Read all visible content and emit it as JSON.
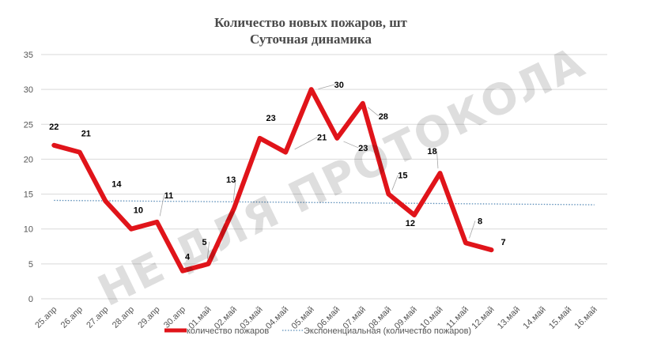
{
  "chart_data": {
    "type": "line",
    "title": "Количество новых пожаров, шт",
    "subtitle": "Суточная динамика",
    "xlabel": "",
    "ylabel": "",
    "categories": [
      "25.апр",
      "26.апр",
      "27.апр",
      "28.апр",
      "29.апр",
      "30.апр",
      "01.май",
      "02.май",
      "03.май",
      "04.май",
      "05.май",
      "06.май",
      "07.май",
      "08.май",
      "09.май",
      "10.май",
      "11.май",
      "12.май",
      "13.май",
      "14.май",
      "15.май",
      "16.май"
    ],
    "yticks": [
      "0",
      "5",
      "10",
      "15",
      "20",
      "25",
      "30",
      "35"
    ],
    "ylim": [
      0,
      35
    ],
    "grid": true,
    "legend_position": "bottom",
    "series": [
      {
        "name": "количество пожаров",
        "color": "#e0141a",
        "values": [
          22,
          21,
          14,
          10,
          11,
          4,
          5,
          13,
          23,
          21,
          30,
          23,
          28,
          15,
          12,
          18,
          8,
          7,
          null,
          null,
          null,
          null
        ]
      },
      {
        "name": "Экспоненциальная (количество пожаров)",
        "color": "#5b8db8",
        "style": "dotted",
        "values": [
          14.1,
          14.07,
          14.04,
          14.01,
          13.98,
          13.95,
          13.92,
          13.89,
          13.86,
          13.83,
          13.8,
          13.77,
          13.74,
          13.71,
          13.68,
          13.65,
          13.62,
          13.59,
          13.56,
          13.53,
          13.5,
          13.47
        ]
      }
    ],
    "watermark": "НЕ ДЛЯ ПРОТОКОЛА"
  }
}
